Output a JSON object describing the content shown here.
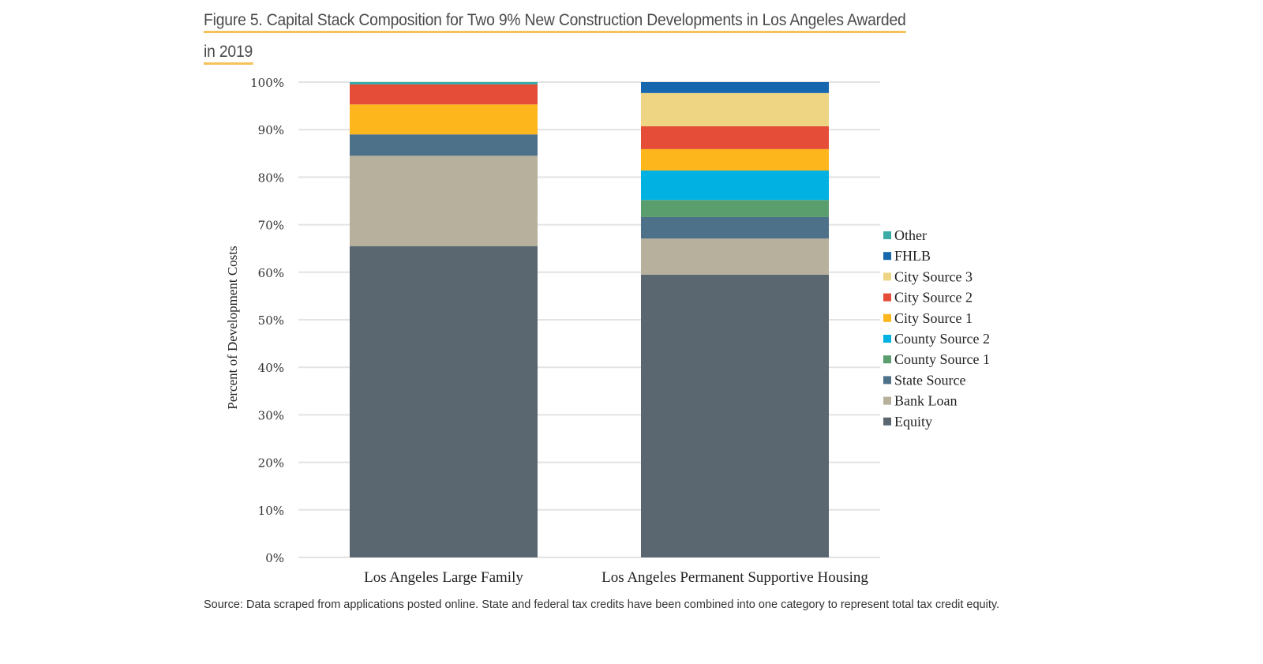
{
  "figure": {
    "title_line1": "Figure 5. Capital Stack Composition for Two 9% New Construction Developments in Los Angeles Awarded",
    "title_line2": "in 2019",
    "source": "Source: Data scraped from applications posted online. State and federal tax credits have been combined into one category to represent total tax credit equity.",
    "accent_color": "#f6c15a"
  },
  "chart_data": {
    "type": "bar",
    "stacked": true,
    "title": "Figure 5. Capital Stack Composition for Two 9% New Construction Developments in Los Angeles Awarded in 2019",
    "xlabel": "",
    "ylabel": "Percent of Development Costs",
    "ylim": [
      0,
      100
    ],
    "yticks": [
      "0%",
      "10%",
      "20%",
      "30%",
      "40%",
      "50%",
      "60%",
      "70%",
      "80%",
      "90%",
      "100%"
    ],
    "grid": true,
    "legend_position": "right",
    "categories": [
      "Los Angeles Large Family",
      "Los Angeles Permanent Supportive Housing"
    ],
    "series": [
      {
        "name": "Equity",
        "color": "#5a6670",
        "values": [
          65.5,
          59.5
        ]
      },
      {
        "name": "Bank Loan",
        "color": "#b7b09c",
        "values": [
          19.0,
          7.6
        ]
      },
      {
        "name": "State Source",
        "color": "#4c7189",
        "values": [
          4.5,
          4.5
        ]
      },
      {
        "name": "County Source 1",
        "color": "#5b9e6e",
        "values": [
          0,
          3.6
        ]
      },
      {
        "name": "County Source 2",
        "color": "#00b1e1",
        "values": [
          0,
          6.2
        ]
      },
      {
        "name": "City Source 1",
        "color": "#fdb71c",
        "values": [
          6.3,
          4.5
        ]
      },
      {
        "name": "City Source 2",
        "color": "#e54d38",
        "values": [
          4.2,
          4.8
        ]
      },
      {
        "name": "City Source 3",
        "color": "#edd584",
        "values": [
          0,
          7.0
        ]
      },
      {
        "name": "FHLB",
        "color": "#1767ae",
        "values": [
          0,
          2.3
        ]
      },
      {
        "name": "Other",
        "color": "#3aaca5",
        "values": [
          0.5,
          0
        ]
      }
    ],
    "legend_order": [
      "Other",
      "FHLB",
      "City Source 3",
      "City Source 2",
      "City Source 1",
      "County Source 2",
      "County Source 1",
      "State Source",
      "Bank Loan",
      "Equity"
    ]
  }
}
